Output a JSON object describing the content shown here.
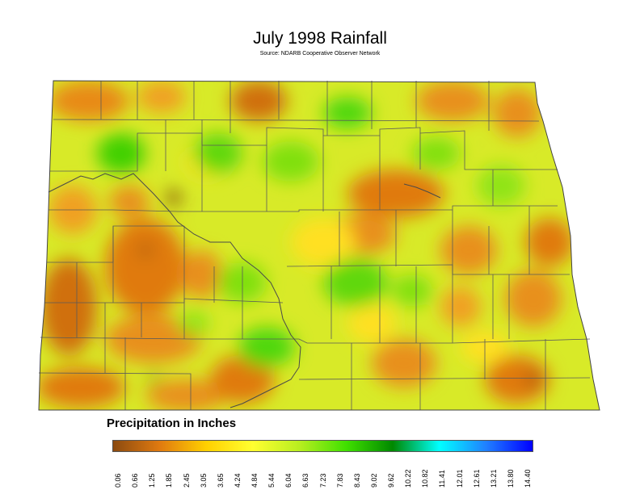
{
  "title": "July 1998 Rainfall",
  "subtitle": "Source: NDARB Cooperative Observer Network",
  "legend": {
    "title": "Precipitation in Inches",
    "ticks": [
      "0.06",
      "0.66",
      "1.25",
      "1.85",
      "2.45",
      "3.05",
      "3.65",
      "4.24",
      "4.84",
      "5.44",
      "6.04",
      "6.63",
      "7.23",
      "7.83",
      "8.43",
      "9.02",
      "9.62",
      "10.22",
      "10.82",
      "11.41",
      "12.01",
      "12.61",
      "13.21",
      "13.80",
      "14.40"
    ],
    "colors": [
      "#8b4a10",
      "#e07a10",
      "#ffd000",
      "#ffff30",
      "#b8ee20",
      "#40e000",
      "#008800",
      "#00ffff",
      "#2080ff",
      "#0000ff"
    ]
  }
}
